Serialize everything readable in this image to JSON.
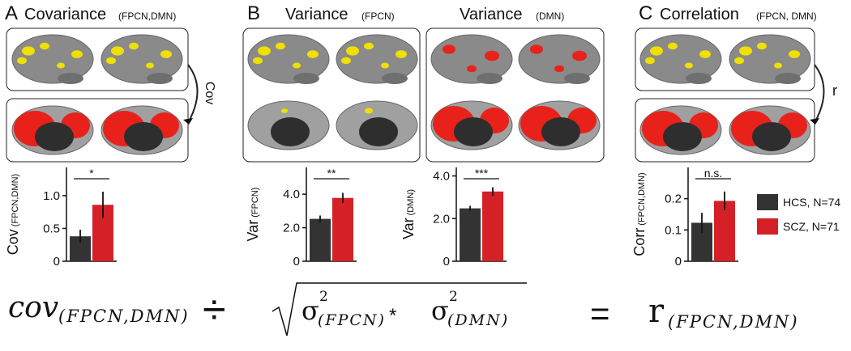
{
  "panels": {
    "a": {
      "letter": "A",
      "title": "Covariance",
      "sub": "(FPCN,DMN)",
      "arrow": "Cov"
    },
    "b": {
      "letter": "B",
      "title1": "Variance",
      "sub1": "(FPCN)",
      "title2": "Variance",
      "sub2": "(DMN)"
    },
    "c": {
      "letter": "C",
      "title": "Correlation",
      "sub": "(FPCN, DMN)",
      "arrow": "r"
    }
  },
  "groups": [
    {
      "name": "HCS, N=74",
      "color": "#333333"
    },
    {
      "name": "SCZ, N=71",
      "color": "#d62027"
    }
  ],
  "chart_data": [
    {
      "type": "bar",
      "ylabel": "Cov",
      "ylabel_sub": "(FPCN,DMN)",
      "values": [
        0.38,
        0.86
      ],
      "errors": [
        0.1,
        0.2
      ],
      "significance": "*",
      "ylim": [
        0,
        1.43
      ],
      "yticks": [
        0,
        0.5,
        {
          "value": 1,
          "label": "1.0"
        }
      ]
    },
    {
      "type": "bar",
      "ylabel": "Var",
      "ylabel_sub": "(FPCN)",
      "values": [
        2.53,
        3.78
      ],
      "errors": [
        0.2,
        0.3
      ],
      "significance": "**",
      "ylim": [
        0,
        5.6
      ],
      "yticks": [
        0,
        {
          "value": 2,
          "label": "2.0"
        },
        {
          "value": 4,
          "label": "4.0"
        }
      ]
    },
    {
      "type": "bar",
      "ylabel": "Var",
      "ylabel_sub": "(DMN)",
      "values": [
        2.48,
        3.27
      ],
      "errors": [
        0.12,
        0.2
      ],
      "significance": "***",
      "ylim": [
        0,
        4.4
      ],
      "yticks": [
        0,
        {
          "value": 2,
          "label": "2.0"
        },
        {
          "value": 4,
          "label": "4.0"
        }
      ]
    },
    {
      "type": "bar",
      "ylabel": "Corr",
      "ylabel_sub": "(FPCN,DMN)",
      "values": [
        0.123,
        0.193
      ],
      "errors": [
        0.032,
        0.03
      ],
      "significance": "n.s.",
      "ylim": [
        0,
        0.3
      ],
      "yticks": [
        0,
        0.1,
        0.2
      ]
    }
  ],
  "formula": {
    "cov": "cov",
    "cov_sub": "(FPCN,DMN)",
    "divide": "÷",
    "sigma1": "σ",
    "sup1": "2",
    "sub1": "(FPCN)",
    "times": "*",
    "sigma2": "σ",
    "sup2": "2",
    "sub2": "(DMN)",
    "equals": "=",
    "r": "r",
    "r_sub": "(FPCN,DMN)"
  }
}
